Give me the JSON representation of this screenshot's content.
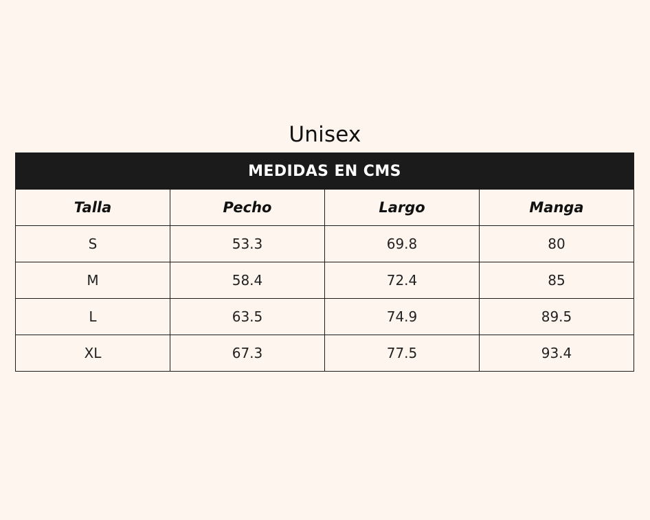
{
  "title": "Unisex",
  "band": {
    "label": "MEDIDAS EN CMS"
  },
  "columns": [
    "Talla",
    "Pecho",
    "Largo",
    "Manga"
  ],
  "rows": [
    [
      "S",
      "53.3",
      "69.8",
      "80"
    ],
    [
      "M",
      "58.4",
      "72.4",
      "85"
    ],
    [
      "L",
      "63.5",
      "74.9",
      "89.5"
    ],
    [
      "XL",
      "67.3",
      "77.5",
      "93.4"
    ]
  ],
  "colors": {
    "background": "#fdf5ee",
    "band_background": "#1b1b1b",
    "band_text": "#ffffff",
    "border": "#1a1a1a"
  }
}
